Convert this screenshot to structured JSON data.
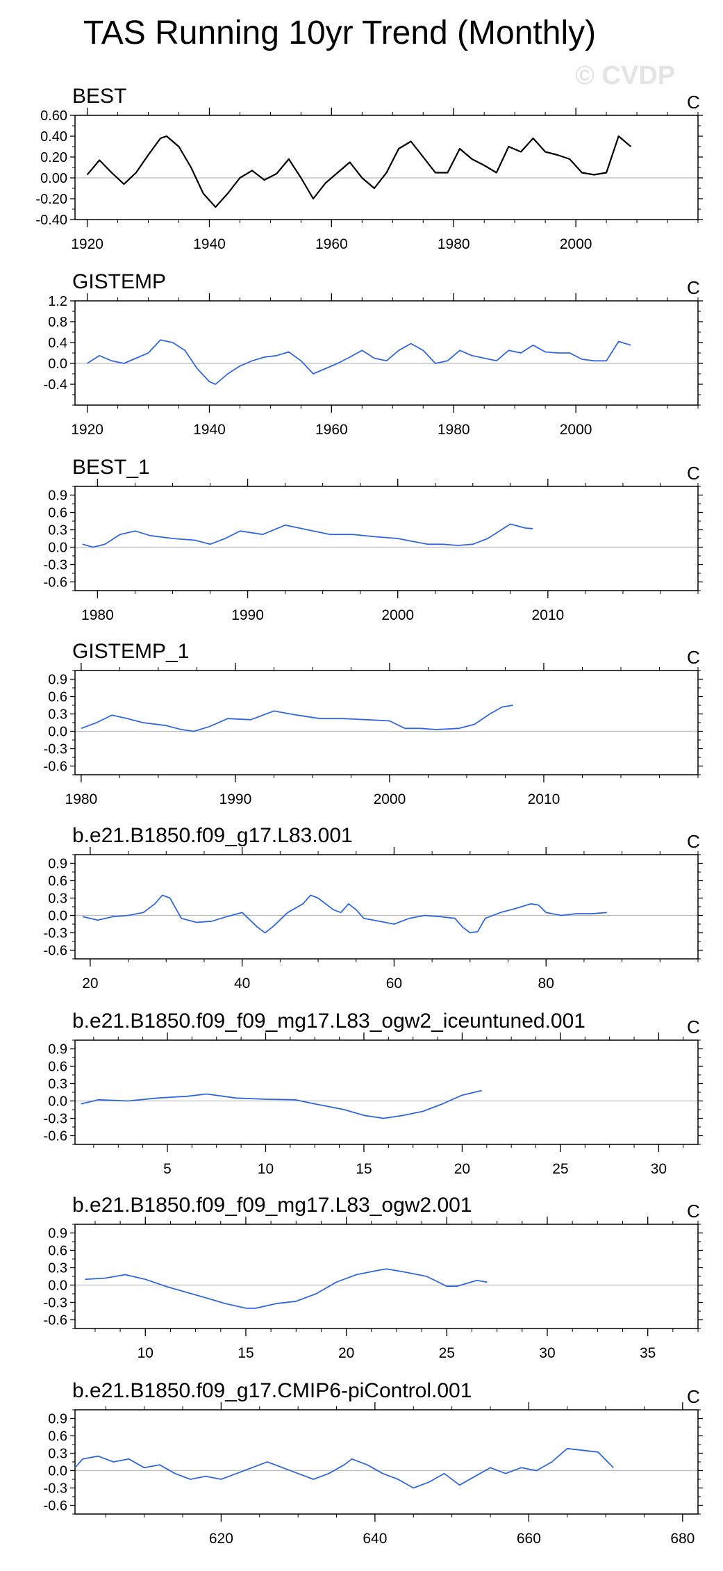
{
  "page": {
    "title": "TAS Running 10yr Trend (Monthly)",
    "watermark": "© CVDP",
    "obs_color": "#000000",
    "model_color": "#3366dd"
  },
  "chart_data": [
    {
      "type": "line",
      "title": "BEST",
      "units": "C",
      "color": "#000000",
      "xlim": [
        1918,
        2020
      ],
      "ylim": [
        -0.4,
        0.6
      ],
      "xticks": [
        1920,
        1940,
        1960,
        1980,
        2000
      ],
      "yticks": [
        -0.4,
        -0.2,
        0.0,
        0.2,
        0.4,
        0.6
      ],
      "ytick_labels": [
        "-0.40",
        "-0.20",
        "0.00",
        "0.20",
        "0.40",
        "0.60"
      ],
      "x": [
        1920,
        1922,
        1924,
        1926,
        1928,
        1930,
        1932,
        1933,
        1935,
        1937,
        1939,
        1941,
        1943,
        1945,
        1947,
        1949,
        1951,
        1953,
        1955,
        1957,
        1959,
        1961,
        1963,
        1965,
        1967,
        1969,
        1971,
        1973,
        1975,
        1977,
        1979,
        1981,
        1983,
        1985,
        1987,
        1989,
        1991,
        1993,
        1995,
        1997,
        1999,
        2001,
        2003,
        2005,
        2007,
        2009
      ],
      "y": [
        0.03,
        0.17,
        0.05,
        -0.06,
        0.05,
        0.22,
        0.38,
        0.4,
        0.3,
        0.1,
        -0.15,
        -0.28,
        -0.15,
        0.0,
        0.07,
        -0.02,
        0.04,
        0.18,
        0.0,
        -0.2,
        -0.05,
        0.05,
        0.15,
        0.0,
        -0.1,
        0.05,
        0.28,
        0.35,
        0.2,
        0.05,
        0.05,
        0.28,
        0.18,
        0.12,
        0.05,
        0.3,
        0.25,
        0.38,
        0.25,
        0.22,
        0.18,
        0.05,
        0.03,
        0.05,
        0.4,
        0.3
      ]
    },
    {
      "type": "line",
      "title": "GISTEMP",
      "units": "C",
      "color": "#3366dd",
      "xlim": [
        1918,
        2020
      ],
      "ylim": [
        -0.8,
        1.2
      ],
      "xticks": [
        1920,
        1940,
        1960,
        1980,
        2000
      ],
      "yticks": [
        -0.4,
        0.0,
        0.4,
        0.8,
        1.2
      ],
      "ytick_labels": [
        "-0.4",
        "0.0",
        "0.4",
        "0.8",
        "1.2"
      ],
      "x": [
        1920,
        1922,
        1924,
        1926,
        1928,
        1930,
        1932,
        1934,
        1936,
        1938,
        1940,
        1941,
        1943,
        1945,
        1947,
        1949,
        1951,
        1953,
        1955,
        1957,
        1959,
        1961,
        1963,
        1965,
        1967,
        1969,
        1971,
        1973,
        1975,
        1977,
        1979,
        1981,
        1983,
        1985,
        1987,
        1989,
        1991,
        1993,
        1995,
        1997,
        1999,
        2001,
        2003,
        2005,
        2007,
        2009
      ],
      "y": [
        0.0,
        0.15,
        0.05,
        0.0,
        0.1,
        0.2,
        0.45,
        0.4,
        0.25,
        -0.1,
        -0.35,
        -0.4,
        -0.2,
        -0.05,
        0.05,
        0.12,
        0.15,
        0.22,
        0.05,
        -0.2,
        -0.1,
        0.0,
        0.12,
        0.25,
        0.1,
        0.05,
        0.25,
        0.38,
        0.25,
        0.0,
        0.05,
        0.25,
        0.15,
        0.1,
        0.05,
        0.25,
        0.2,
        0.35,
        0.22,
        0.2,
        0.2,
        0.08,
        0.05,
        0.05,
        0.42,
        0.35
      ]
    },
    {
      "type": "line",
      "title": "BEST_1",
      "units": "C",
      "color": "#3366dd",
      "xlim": [
        1978.5,
        2020
      ],
      "ylim": [
        -0.75,
        1.05
      ],
      "xticks": [
        1980,
        1990,
        2000,
        2010
      ],
      "yticks": [
        -0.6,
        -0.3,
        0.0,
        0.3,
        0.6,
        0.9
      ],
      "ytick_labels": [
        "-0.6",
        "-0.3",
        "0.0",
        "0.3",
        "0.6",
        "0.9"
      ],
      "x": [
        1979,
        1979.7,
        1980.5,
        1981.5,
        1982.5,
        1983.5,
        1985,
        1986.5,
        1987.5,
        1988.5,
        1989.5,
        1991,
        1992.5,
        1994,
        1995.5,
        1997,
        1998.5,
        2000,
        2001,
        2002,
        2003,
        2004,
        2005,
        2006,
        2007.5,
        2008.5,
        2009
      ],
      "y": [
        0.05,
        0.0,
        0.05,
        0.22,
        0.28,
        0.2,
        0.15,
        0.12,
        0.05,
        0.15,
        0.28,
        0.22,
        0.38,
        0.3,
        0.22,
        0.22,
        0.18,
        0.15,
        0.1,
        0.05,
        0.05,
        0.03,
        0.05,
        0.15,
        0.4,
        0.33,
        0.32
      ]
    },
    {
      "type": "line",
      "title": "GISTEMP_1",
      "units": "C",
      "color": "#3366dd",
      "xlim": [
        1979.6,
        2020
      ],
      "ylim": [
        -0.75,
        1.05
      ],
      "xticks": [
        1980,
        1990,
        2000,
        2010
      ],
      "yticks": [
        -0.6,
        -0.3,
        0.0,
        0.3,
        0.6,
        0.9
      ],
      "ytick_labels": [
        "-0.6",
        "-0.3",
        "0.0",
        "0.3",
        "0.6",
        "0.9"
      ],
      "x": [
        1980,
        1981,
        1982,
        1983,
        1984,
        1985.5,
        1986.5,
        1987.3,
        1988.3,
        1989.5,
        1991,
        1992.5,
        1994,
        1995.5,
        1997,
        1998.5,
        2000,
        2001,
        2002,
        2003,
        2004.5,
        2005.5,
        2006.5,
        2007.3,
        2008
      ],
      "y": [
        0.05,
        0.15,
        0.28,
        0.22,
        0.15,
        0.1,
        0.03,
        0.0,
        0.08,
        0.22,
        0.2,
        0.35,
        0.28,
        0.22,
        0.22,
        0.2,
        0.18,
        0.05,
        0.05,
        0.03,
        0.05,
        0.12,
        0.3,
        0.42,
        0.45
      ]
    },
    {
      "type": "line",
      "title": "b.e21.B1850.f09_g17.L83.001",
      "units": "C",
      "color": "#3366dd",
      "xlim": [
        18,
        100
      ],
      "ylim": [
        -0.75,
        1.05
      ],
      "xticks": [
        20,
        40,
        60,
        80
      ],
      "yticks": [
        -0.6,
        -0.3,
        0.0,
        0.3,
        0.6,
        0.9
      ],
      "ytick_labels": [
        "-0.6",
        "-0.3",
        "0.0",
        "0.3",
        "0.6",
        "0.9"
      ],
      "x": [
        19,
        21,
        23,
        25,
        27,
        28.5,
        29.5,
        30.5,
        32,
        34,
        36,
        38,
        40,
        42,
        43,
        44,
        46,
        48,
        49,
        50,
        52,
        53,
        54,
        55,
        56,
        58,
        60,
        62,
        64,
        66,
        68,
        69,
        70,
        71,
        72,
        74,
        76,
        78,
        79,
        80,
        82,
        84,
        86,
        88
      ],
      "y": [
        -0.02,
        -0.08,
        -0.02,
        0.0,
        0.05,
        0.2,
        0.35,
        0.3,
        -0.05,
        -0.12,
        -0.1,
        -0.02,
        0.05,
        -0.2,
        -0.3,
        -0.2,
        0.05,
        0.2,
        0.35,
        0.3,
        0.1,
        0.05,
        0.2,
        0.1,
        -0.05,
        -0.1,
        -0.15,
        -0.05,
        0.0,
        -0.02,
        -0.05,
        -0.2,
        -0.3,
        -0.28,
        -0.05,
        0.05,
        0.12,
        0.2,
        0.18,
        0.05,
        0.0,
        0.03,
        0.03,
        0.05
      ]
    },
    {
      "type": "line",
      "title": "b.e21.B1850.f09_f09_mg17.L83_ogw2_iceuntuned.001",
      "units": "C",
      "color": "#3366dd",
      "xlim": [
        0.3,
        32
      ],
      "ylim": [
        -0.75,
        1.05
      ],
      "xticks": [
        5,
        10,
        15,
        20,
        25,
        30
      ],
      "yticks": [
        -0.6,
        -0.3,
        0.0,
        0.3,
        0.6,
        0.9
      ],
      "ytick_labels": [
        "-0.6",
        "-0.3",
        "0.0",
        "0.3",
        "0.6",
        "0.9"
      ],
      "x": [
        0.6,
        1.5,
        3,
        4.5,
        6,
        7,
        8.5,
        10,
        11.5,
        12.5,
        14,
        15,
        16,
        17,
        18,
        19,
        20,
        21
      ],
      "y": [
        -0.05,
        0.02,
        0.0,
        0.05,
        0.08,
        0.12,
        0.05,
        0.03,
        0.02,
        -0.05,
        -0.15,
        -0.25,
        -0.3,
        -0.25,
        -0.18,
        -0.05,
        0.1,
        0.18
      ]
    },
    {
      "type": "line",
      "title": "b.e21.B1850.f09_f09_mg17.L83_ogw2.001",
      "units": "C",
      "color": "#3366dd",
      "xlim": [
        6.5,
        37.5
      ],
      "ylim": [
        -0.75,
        1.05
      ],
      "xticks": [
        10,
        15,
        20,
        25,
        30,
        35
      ],
      "yticks": [
        -0.6,
        -0.3,
        0.0,
        0.3,
        0.6,
        0.9
      ],
      "ytick_labels": [
        "-0.6",
        "-0.3",
        "0.0",
        "0.3",
        "0.6",
        "0.9"
      ],
      "x": [
        7,
        8,
        9,
        10,
        11,
        12,
        13,
        14,
        15,
        15.5,
        16.5,
        17.5,
        18.5,
        19.5,
        20.5,
        21.5,
        22,
        23,
        24,
        25,
        25.5,
        26.5,
        27
      ],
      "y": [
        0.1,
        0.12,
        0.18,
        0.1,
        -0.02,
        -0.12,
        -0.22,
        -0.32,
        -0.4,
        -0.4,
        -0.32,
        -0.28,
        -0.15,
        0.05,
        0.18,
        0.25,
        0.28,
        0.22,
        0.15,
        -0.02,
        -0.02,
        0.08,
        0.05
      ]
    },
    {
      "type": "line",
      "title": "b.e21.B1850.f09_g17.CMIP6-piControl.001",
      "units": "C",
      "color": "#3366dd",
      "xlim": [
        601,
        682
      ],
      "ylim": [
        -0.75,
        1.05
      ],
      "xticks": [
        620,
        640,
        660,
        680
      ],
      "yticks": [
        -0.6,
        -0.3,
        0.0,
        0.3,
        0.6,
        0.9
      ],
      "ytick_labels": [
        "-0.6",
        "-0.3",
        "0.0",
        "0.3",
        "0.6",
        "0.9"
      ],
      "x": [
        601,
        602,
        604,
        606,
        608,
        610,
        612,
        614,
        616,
        618,
        620,
        622,
        624,
        626,
        628,
        630,
        632,
        634,
        636,
        637,
        639,
        641,
        643,
        645,
        647,
        649,
        651,
        653,
        655,
        657,
        659,
        661,
        663,
        665,
        667,
        669,
        671
      ],
      "y": [
        0.05,
        0.2,
        0.25,
        0.15,
        0.2,
        0.05,
        0.1,
        -0.05,
        -0.15,
        -0.1,
        -0.15,
        -0.05,
        0.05,
        0.15,
        0.05,
        -0.05,
        -0.15,
        -0.05,
        0.1,
        0.2,
        0.1,
        -0.05,
        -0.15,
        -0.3,
        -0.2,
        -0.05,
        -0.25,
        -0.1,
        0.05,
        -0.05,
        0.05,
        0.0,
        0.15,
        0.38,
        0.35,
        0.32,
        0.05
      ]
    }
  ]
}
